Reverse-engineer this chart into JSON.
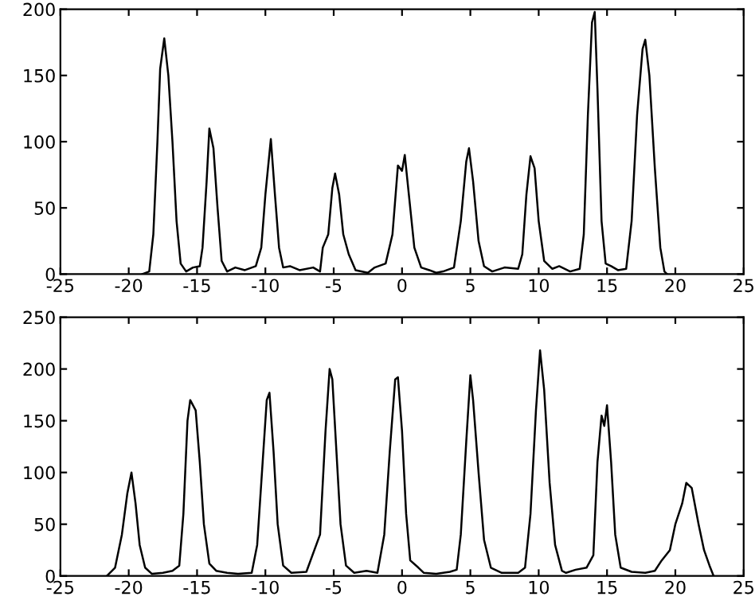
{
  "chart_data": [
    {
      "type": "line",
      "xlim": [
        -25,
        25
      ],
      "ylim": [
        0,
        200
      ],
      "xticks": [
        -25,
        -20,
        -15,
        -10,
        -5,
        0,
        5,
        10,
        15,
        20,
        25
      ],
      "yticks": [
        0,
        50,
        100,
        150,
        200
      ],
      "grid": false,
      "legend": false,
      "series": [
        {
          "color": "#000000",
          "x": [
            -19,
            -18.5,
            -18.2,
            -17.9,
            -17.7,
            -17.4,
            -17.1,
            -16.8,
            -16.5,
            -16.2,
            -15.8,
            -15.3,
            -14.8,
            -14.6,
            -14.3,
            -14.1,
            -13.8,
            -13.5,
            -13.2,
            -12.8,
            -12.2,
            -11.5,
            -10.7,
            -10.3,
            -10,
            -9.6,
            -9.3,
            -9,
            -8.7,
            -8.2,
            -7.5,
            -6.5,
            -6,
            -5.8,
            -5.4,
            -5.1,
            -4.9,
            -4.6,
            -4.3,
            -3.9,
            -3.4,
            -2.5,
            -2,
            -1.2,
            -0.7,
            -0.3,
            0,
            0.2,
            0.5,
            0.9,
            1.4,
            2,
            2.5,
            3,
            3.8,
            4.3,
            4.7,
            4.9,
            5.2,
            5.6,
            6,
            6.6,
            7.5,
            8.5,
            8.8,
            9.1,
            9.4,
            9.7,
            10,
            10.4,
            11,
            11.5,
            12.3,
            13,
            13.3,
            13.6,
            13.9,
            14.1,
            14.3,
            14.6,
            14.9,
            15.3,
            15.8,
            16.4,
            16.8,
            17.2,
            17.6,
            17.8,
            18.1,
            18.5,
            18.9,
            19.2,
            19.4
          ],
          "values": [
            0,
            2,
            30,
            100,
            155,
            178,
            150,
            100,
            40,
            8,
            2,
            5,
            6,
            20,
            70,
            110,
            95,
            50,
            10,
            2,
            5,
            3,
            6,
            20,
            60,
            102,
            60,
            20,
            5,
            6,
            3,
            5,
            2,
            20,
            30,
            65,
            76,
            60,
            30,
            15,
            3,
            1,
            5,
            8,
            30,
            82,
            78,
            90,
            60,
            20,
            5,
            3,
            1,
            2,
            5,
            40,
            85,
            95,
            70,
            25,
            6,
            2,
            5,
            4,
            15,
            60,
            89,
            80,
            40,
            10,
            4,
            6,
            2,
            4,
            30,
            120,
            190,
            198,
            140,
            40,
            8,
            6,
            3,
            4,
            40,
            120,
            170,
            177,
            150,
            80,
            20,
            2,
            0
          ]
        }
      ]
    },
    {
      "type": "line",
      "xlim": [
        -25,
        25
      ],
      "ylim": [
        0,
        250
      ],
      "xticks": [
        -25,
        -20,
        -15,
        -10,
        -5,
        0,
        5,
        10,
        15,
        20,
        25
      ],
      "yticks": [
        0,
        50,
        100,
        150,
        200,
        250
      ],
      "grid": false,
      "legend": false,
      "series": [
        {
          "color": "#000000",
          "x": [
            -21.6,
            -21,
            -20.5,
            -20.1,
            -19.8,
            -19.5,
            -19.2,
            -18.8,
            -18.3,
            -17.5,
            -16.8,
            -16.3,
            -16,
            -15.7,
            -15.5,
            -15.1,
            -14.8,
            -14.5,
            -14.1,
            -13.6,
            -12.8,
            -12,
            -11,
            -10.6,
            -10.2,
            -9.9,
            -9.7,
            -9.4,
            -9.1,
            -8.7,
            -8.1,
            -7,
            -6,
            -5.6,
            -5.3,
            -5.1,
            -4.8,
            -4.5,
            -4.1,
            -3.5,
            -2.6,
            -1.8,
            -1.3,
            -0.9,
            -0.5,
            -0.3,
            0,
            0.3,
            0.6,
            1.2,
            1.6,
            2.5,
            3.5,
            4,
            4.3,
            4.7,
            5,
            5.2,
            5.6,
            6,
            6.5,
            7.3,
            8.5,
            9,
            9.4,
            9.8,
            10.1,
            10.4,
            10.8,
            11.2,
            11.7,
            12,
            12.7,
            13.5,
            14,
            14.3,
            14.6,
            14.8,
            15,
            15.3,
            15.6,
            16,
            16.8,
            17.8,
            18.5,
            19,
            19.6,
            20,
            20.5,
            20.8,
            21.2,
            21.7,
            22.1,
            22.5,
            22.8
          ],
          "values": [
            0,
            8,
            40,
            80,
            100,
            70,
            30,
            8,
            2,
            3,
            5,
            10,
            60,
            150,
            170,
            160,
            110,
            50,
            12,
            5,
            3,
            2,
            3,
            30,
            110,
            170,
            177,
            120,
            50,
            10,
            3,
            4,
            40,
            140,
            200,
            190,
            120,
            50,
            10,
            3,
            5,
            3,
            40,
            120,
            190,
            192,
            140,
            60,
            15,
            8,
            3,
            2,
            4,
            6,
            40,
            130,
            194,
            170,
            100,
            35,
            8,
            3,
            3,
            8,
            60,
            160,
            218,
            180,
            90,
            30,
            5,
            3,
            6,
            8,
            20,
            110,
            155,
            145,
            165,
            110,
            40,
            8,
            4,
            3,
            5,
            15,
            25,
            50,
            70,
            90,
            85,
            50,
            25,
            10,
            0
          ]
        }
      ]
    }
  ]
}
